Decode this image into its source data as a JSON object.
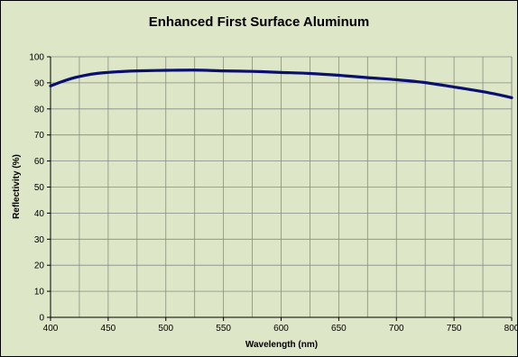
{
  "chart_data": {
    "type": "line",
    "title": "Enhanced First Surface Aluminum",
    "xlabel": "Wavelength (nm)",
    "ylabel": "Reflectivity (%)",
    "xlim": [
      400,
      800
    ],
    "ylim": [
      0,
      100
    ],
    "x_ticks": [
      400,
      450,
      500,
      550,
      600,
      650,
      700,
      750,
      800
    ],
    "y_ticks": [
      0,
      10,
      20,
      30,
      40,
      50,
      60,
      70,
      80,
      90,
      100
    ],
    "x_tick_labels": [
      "400",
      "450",
      "500",
      "550",
      "600",
      "650",
      "700",
      "750",
      "800"
    ],
    "y_tick_labels": [
      "0",
      "10",
      "20",
      "30",
      "40",
      "50",
      "60",
      "70",
      "80",
      "90",
      "100"
    ],
    "grid": true,
    "legend": "none",
    "background_color": "#dde6c6",
    "line_color": "#0a1070",
    "series": [
      {
        "x": [
          400,
          410,
          420,
          430,
          440,
          450,
          460,
          475,
          500,
          525,
          550,
          575,
          600,
          625,
          650,
          675,
          700,
          725,
          750,
          775,
          790,
          800
        ],
        "values": [
          88.8,
          90.5,
          91.9,
          92.9,
          93.6,
          94.0,
          94.3,
          94.6,
          94.8,
          94.9,
          94.6,
          94.4,
          94.0,
          93.6,
          92.9,
          92.0,
          91.2,
          90.1,
          88.4,
          86.6,
          85.3,
          84.3
        ]
      }
    ]
  }
}
